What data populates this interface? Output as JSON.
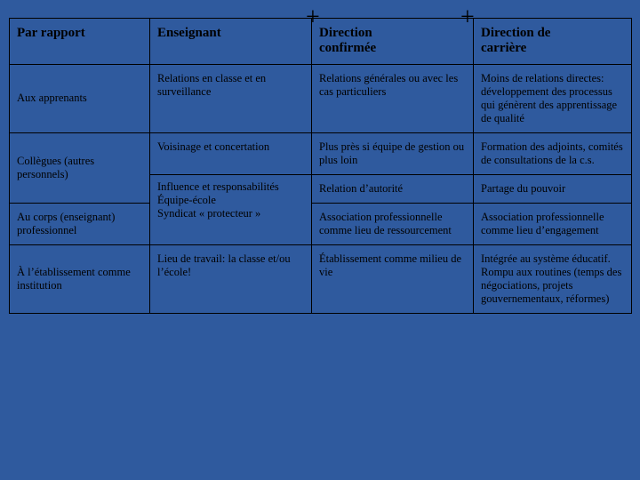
{
  "colors": {
    "background": "#2f5a9e",
    "border": "#000000",
    "text": "#000000"
  },
  "symbols": {
    "plus": "+"
  },
  "table": {
    "type": "table",
    "header": {
      "c0": "Par rapport",
      "c1": "Enseignant",
      "c2_l1": "Direction",
      "c2_l2": "confirmée",
      "c3_l1": "Direction de",
      "c3_l2": "carrière"
    },
    "rows": [
      {
        "label": "Aux apprenants",
        "c1": "Relations en classe et en surveillance",
        "c2": "Relations générales ou avec les cas particuliers",
        "c3": "Moins de relations directes: développement des processus qui génèrent des apprentissage de qualité"
      },
      {
        "label": "Collègues (autres personnels)",
        "c1": "Voisinage et concertation",
        "c2": "Plus près si équipe de gestion ou plus loin",
        "c3": "Formation des adjoints, comités de consultations de la c.s."
      },
      {
        "label": "",
        "c1": " Influence et responsabilités",
        "c2": "Relation d’autorité",
        "c3": "Partage du pouvoir"
      },
      {
        "label": "Au corps (enseignant) professionnel",
        "c1": "Équipe-école\nSyndicat « protecteur »",
        "c2": "Association professionnelle comme lieu de ressourcement",
        "c3": "Association professionnelle comme lieu d’engagement"
      },
      {
        "label": "À l’établissement comme institution",
        "c1": "Lieu de travail: la classe et/ou l’école!",
        "c2": "Établissement comme milieu de vie",
        "c3": "Intégrée au système éducatif. Rompu aux routines (temps des négociations, projets gouvernementaux, réformes)"
      }
    ]
  }
}
